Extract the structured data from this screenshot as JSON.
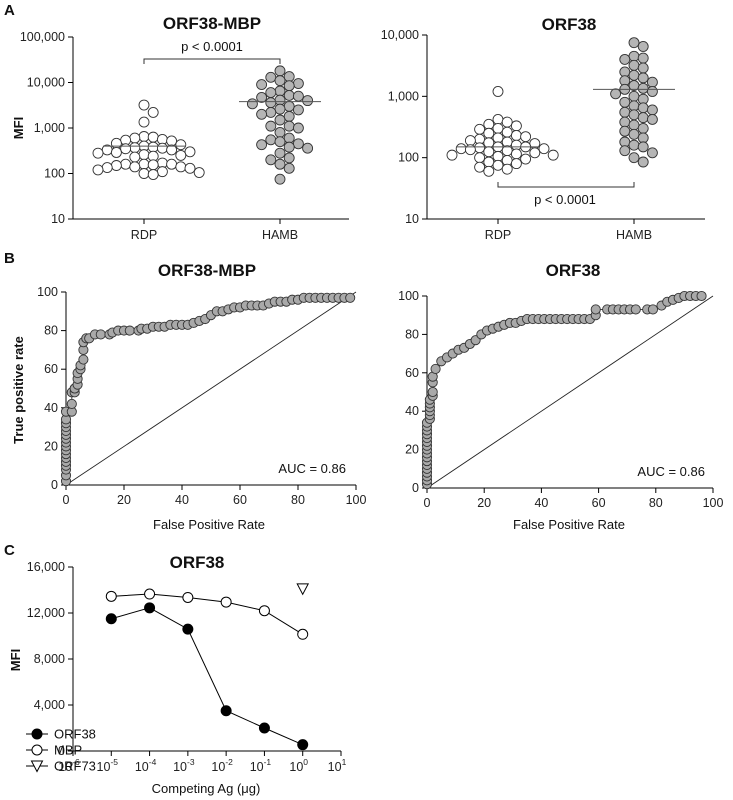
{
  "panel_letters": [
    "A",
    "B",
    "C"
  ],
  "chart_data": [
    {
      "panel": "A",
      "type": "scatter",
      "title": "ORF38-MBP",
      "ylabel": "MFI",
      "xlabel": "",
      "yscale": "log",
      "ylim": [
        10,
        100000
      ],
      "yticks": [
        "10",
        "100",
        "1,000",
        "10,000",
        "100,000"
      ],
      "categories": [
        "RDP",
        "HAMB"
      ],
      "series": [
        {
          "category": "RDP",
          "fill": "#ffffff",
          "median": 400,
          "values": [
            3200,
            2200,
            1350,
            650,
            560,
            630,
            600,
            540,
            520,
            460,
            430,
            380,
            400,
            360,
            370,
            350,
            330,
            330,
            290,
            300,
            260,
            250,
            280,
            240,
            230,
            170,
            160,
            140,
            130,
            135,
            140,
            150,
            160,
            120,
            110,
            105,
            100,
            95,
            160,
            155
          ]
        },
        {
          "category": "HAMB",
          "fill": "#b5b5b5",
          "median": 3800,
          "values": [
            18000,
            13000,
            13500,
            11000,
            9500,
            8500,
            9000,
            6500,
            5200,
            6000,
            5000,
            4700,
            4000,
            4100,
            3600,
            3400,
            3000,
            2600,
            2500,
            2000,
            2200,
            1800,
            1500,
            1100,
            1000,
            1100,
            800,
            600,
            500,
            550,
            450,
            430,
            380,
            360,
            280,
            220,
            200,
            160,
            130,
            75
          ]
        }
      ],
      "annotation": "p < 0.0001",
      "bracket": "top"
    },
    {
      "panel": "A",
      "type": "scatter",
      "title": "ORF38",
      "ylabel": "",
      "xlabel": "",
      "yscale": "log",
      "ylim": [
        10,
        10000
      ],
      "yticks": [
        "10",
        "100",
        "1,000",
        "10,000"
      ],
      "categories": [
        "RDP",
        "HAMB"
      ],
      "series": [
        {
          "category": "RDP",
          "fill": "#ffffff",
          "median": 150,
          "values": [
            1200,
            420,
            380,
            350,
            330,
            300,
            290,
            260,
            250,
            230,
            220,
            210,
            200,
            190,
            180,
            170,
            175,
            160,
            150,
            145,
            140,
            140,
            135,
            130,
            125,
            120,
            115,
            110,
            105,
            100,
            95,
            90,
            85,
            80,
            75,
            70,
            65,
            60,
            150,
            110
          ]
        },
        {
          "category": "HAMB",
          "fill": "#b5b5b5",
          "median": 1300,
          "values": [
            7500,
            6500,
            4500,
            4200,
            4000,
            3200,
            2900,
            2500,
            2200,
            2000,
            1800,
            1700,
            1500,
            1300,
            1350,
            1200,
            1100,
            1000,
            900,
            800,
            700,
            650,
            600,
            550,
            500,
            450,
            420,
            380,
            340,
            300,
            270,
            240,
            210,
            180,
            160,
            150,
            130,
            120,
            100,
            85
          ]
        }
      ],
      "annotation": "p < 0.0001",
      "bracket": "bottom"
    },
    {
      "panel": "B",
      "type": "line",
      "title": "ORF38-MBP",
      "xlabel": "False Positive Rate",
      "ylabel": "True positive rate",
      "xlim": [
        0,
        100
      ],
      "ylim": [
        0,
        100
      ],
      "ticks": [
        "0",
        "20",
        "40",
        "60",
        "80",
        "100"
      ],
      "annotation": "AUC = 0.86",
      "x": [
        0,
        0,
        0,
        0,
        0,
        0,
        0,
        0,
        0,
        0,
        0,
        0,
        0,
        0,
        0,
        0,
        0,
        2,
        2,
        2,
        3,
        3,
        3,
        4,
        4,
        4,
        5,
        5,
        6,
        6,
        6,
        7,
        8,
        10,
        12,
        15,
        16,
        18,
        20,
        22,
        25,
        26,
        28,
        30,
        32,
        34,
        36,
        38,
        40,
        42,
        44,
        46,
        48,
        50,
        52,
        54,
        56,
        58,
        60,
        62,
        64,
        66,
        68,
        70,
        72,
        74,
        76,
        78,
        80,
        82,
        84,
        86,
        88,
        90,
        92,
        94,
        96,
        98
      ],
      "y": [
        2,
        5,
        8,
        10,
        12,
        14,
        16,
        18,
        20,
        22,
        24,
        26,
        28,
        30,
        32,
        34,
        38,
        38,
        42,
        48,
        48,
        50,
        50,
        52,
        55,
        58,
        60,
        62,
        65,
        70,
        74,
        76,
        76,
        78,
        78,
        78,
        79,
        80,
        80,
        80,
        80,
        81,
        81,
        82,
        82,
        82,
        83,
        83,
        83,
        83,
        84,
        85,
        86,
        88,
        90,
        90,
        91,
        92,
        92,
        93,
        93,
        93,
        93,
        94,
        95,
        95,
        95,
        96,
        96,
        97,
        97,
        97,
        97,
        97,
        97,
        97,
        97,
        97
      ]
    },
    {
      "panel": "B",
      "type": "line",
      "title": "ORF38",
      "xlabel": "False Positive Rate",
      "ylabel": "",
      "xlim": [
        0,
        100
      ],
      "ylim": [
        0,
        100
      ],
      "ticks": [
        "0",
        "20",
        "40",
        "60",
        "80",
        "100"
      ],
      "annotation": "AUC = 0.86",
      "x": [
        0,
        0,
        0,
        0,
        0,
        0,
        0,
        0,
        0,
        0,
        0,
        0,
        0,
        0,
        0,
        0,
        0,
        1,
        1,
        1,
        1,
        1,
        1,
        2,
        2,
        2,
        2,
        3,
        5,
        7,
        9,
        11,
        13,
        15,
        17,
        19,
        21,
        23,
        25,
        27,
        29,
        31,
        33,
        35,
        37,
        39,
        41,
        43,
        45,
        47,
        49,
        51,
        53,
        55,
        57,
        59,
        59,
        63,
        65,
        67,
        69,
        71,
        73,
        77,
        79,
        82,
        84,
        86,
        88,
        90,
        92,
        94,
        96
      ],
      "y": [
        2,
        4,
        6,
        8,
        10,
        12,
        14,
        16,
        18,
        20,
        22,
        24,
        26,
        28,
        30,
        32,
        34,
        36,
        38,
        40,
        42,
        44,
        46,
        48,
        50,
        55,
        58,
        62,
        66,
        68,
        70,
        72,
        73,
        75,
        77,
        80,
        82,
        83,
        84,
        85,
        86,
        86,
        87,
        88,
        88,
        88,
        88,
        88,
        88,
        88,
        88,
        88,
        88,
        88,
        88,
        90,
        93,
        93,
        93,
        93,
        93,
        93,
        93,
        93,
        93,
        95,
        97,
        98,
        99,
        100,
        100,
        100,
        100
      ]
    },
    {
      "panel": "C",
      "type": "line",
      "title": "ORF38",
      "xlabel": "Competing Ag (μg)",
      "ylabel": "MFI",
      "xscale": "log",
      "xlim": [
        1e-06,
        10
      ],
      "ylim": [
        0,
        16000
      ],
      "yticks": [
        "0",
        "4,000",
        "8,000",
        "12,000",
        "16,000"
      ],
      "xtick_exponents": [
        "-6",
        "-5",
        "-4",
        "-3",
        "-2",
        "-1",
        "0",
        "1"
      ],
      "legend_position": "bottom-left",
      "series": [
        {
          "name": "ORF38",
          "marker": "filled-circle",
          "x": [
            1e-05,
            0.0001,
            0.001,
            0.01,
            0.1,
            1
          ],
          "y": [
            11500,
            12450,
            10600,
            3500,
            2000,
            550
          ]
        },
        {
          "name": "MBP",
          "marker": "open-circle",
          "x": [
            1e-05,
            0.0001,
            0.001,
            0.01,
            0.1,
            1
          ],
          "y": [
            13450,
            13650,
            13350,
            12950,
            12200,
            10150
          ]
        },
        {
          "name": "ORF73",
          "marker": "open-triangle",
          "x": [
            1
          ],
          "y": [
            14100
          ]
        }
      ]
    }
  ]
}
